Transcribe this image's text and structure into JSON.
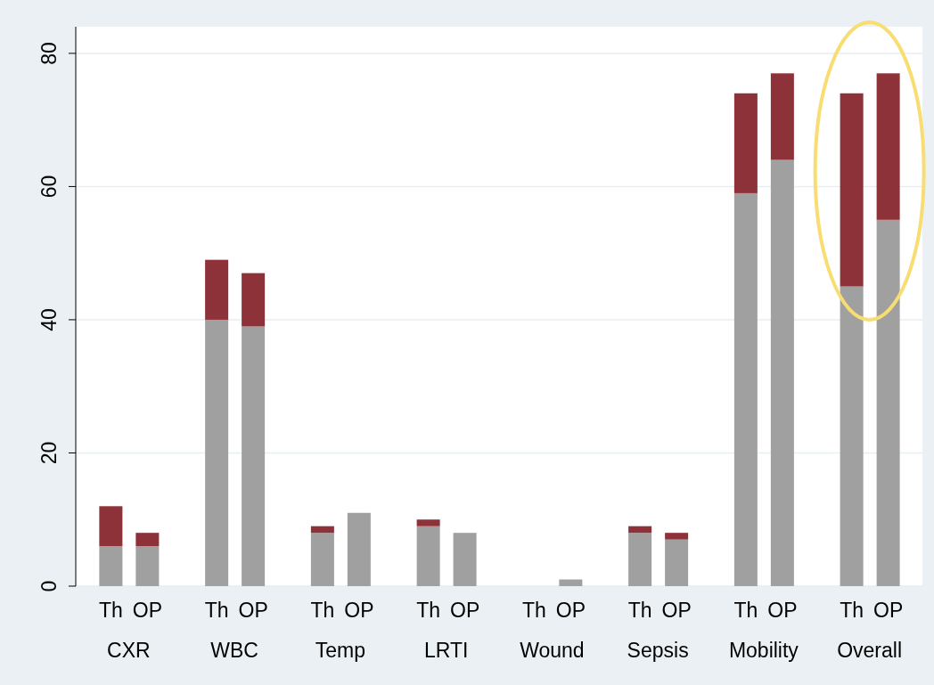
{
  "chart_data": {
    "type": "bar",
    "stacked": true,
    "categories": [
      "Th",
      "OP",
      "Th",
      "OP",
      "Th",
      "OP",
      "Th",
      "OP",
      "Th",
      "OP",
      "Th",
      "OP",
      "Th",
      "OP",
      "Th",
      "OP"
    ],
    "annotations": [
      "CXR",
      "WBC",
      "Temp",
      "LRTI",
      "Wound",
      "Sepsis",
      "Mobility",
      "Overall"
    ],
    "series": [
      {
        "color": "#a0a0a0",
        "values": [
          6,
          6,
          40,
          39,
          8,
          11,
          9,
          8,
          0,
          1,
          8,
          7,
          59,
          64,
          45,
          55
        ]
      },
      {
        "color": "#8e323a",
        "values": [
          6,
          2,
          9,
          8,
          1,
          0,
          1,
          0,
          0,
          0,
          1,
          1,
          15,
          13,
          29,
          22
        ]
      }
    ],
    "ylim": [
      0,
      84
    ],
    "yticks": [
      0,
      20,
      40,
      60,
      80
    ],
    "grid": "y"
  }
}
